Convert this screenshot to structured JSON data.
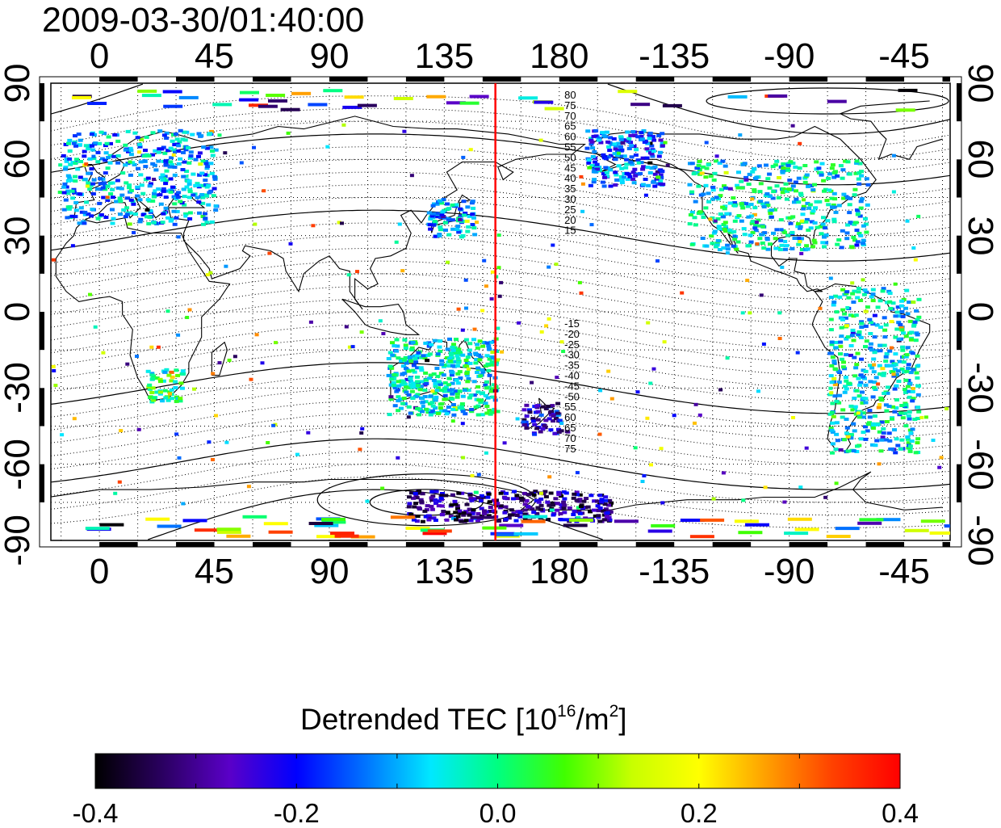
{
  "title": {
    "timestamp": "2009-03-30/01:40:00"
  },
  "map": {
    "projection": "equirectangular",
    "central_longitude": 7,
    "lon_axis": {
      "top_ticks": [
        "0",
        "45",
        "90",
        "135",
        "180",
        "-135",
        "-90",
        "-45"
      ],
      "bottom_ticks": [
        "0",
        "45",
        "90",
        "135",
        "180",
        "-135",
        "-90",
        "-45"
      ],
      "tick_lon_values": [
        0,
        45,
        90,
        135,
        180,
        225,
        270,
        315
      ],
      "range_lon": [
        -19,
        333
      ]
    },
    "lat_axis": {
      "left_ticks": [
        "90",
        "60",
        "30",
        "0",
        "-30",
        "-60",
        "-90"
      ],
      "right_ticks": [
        "90",
        "60",
        "30",
        "0",
        "-30",
        "-60",
        "-90"
      ],
      "tick_lat_values": [
        90,
        60,
        30,
        0,
        -30,
        -60,
        -90
      ]
    },
    "grid": "dotted, every 15 degrees",
    "marker_line": {
      "longitude": 155,
      "color": "#ff0000"
    },
    "contour_labels_north": [
      "80",
      "75",
      "70",
      "65",
      "60",
      "55",
      "50",
      "45",
      "40",
      "35",
      "30",
      "25",
      "20",
      "15"
    ],
    "contour_labels_south": [
      "-15",
      "-20",
      "-25",
      "-30",
      "-35",
      "-40",
      "-45",
      "-50",
      "55",
      "60",
      "65",
      "70",
      "75"
    ],
    "data_regions": [
      {
        "region": "Europe",
        "lat": [
          35,
          72
        ],
        "lon": [
          -15,
          45
        ],
        "mean": -0.1
      },
      {
        "region": "Alaska",
        "lat": [
          50,
          72
        ],
        "lon": [
          190,
          220
        ],
        "mean": -0.15
      },
      {
        "region": "North America",
        "lat": [
          25,
          60
        ],
        "lon": [
          230,
          300
        ],
        "mean": -0.05
      },
      {
        "region": "Japan",
        "lat": [
          30,
          45
        ],
        "lon": [
          128,
          146
        ],
        "mean": -0.1
      },
      {
        "region": "New Zealand",
        "lat": [
          -48,
          -35
        ],
        "lon": [
          165,
          180
        ],
        "mean": -0.25
      },
      {
        "region": "Antarctica",
        "lat": [
          -82,
          -70
        ],
        "lon": [
          120,
          200
        ],
        "mean": -0.3
      },
      {
        "region": "South Africa",
        "lat": [
          -35,
          -22
        ],
        "lon": [
          18,
          32
        ],
        "mean": 0.0
      },
      {
        "region": "Australia",
        "lat": [
          -40,
          -10
        ],
        "lon": [
          112,
          155
        ],
        "mean": -0.05
      },
      {
        "region": "South America",
        "lat": [
          -55,
          10
        ],
        "lon": [
          285,
          320
        ],
        "mean": -0.05
      }
    ]
  },
  "colorbar": {
    "title_main": "Detrended TEC  [10",
    "title_exp": "16",
    "title_unit": "/m",
    "title_exp2": "2",
    "title_close": "]",
    "ticks": [
      "-0.4",
      "-0.2",
      "0.0",
      "0.2",
      "0.4"
    ],
    "range": [
      -0.4,
      0.4
    ],
    "colors": [
      "#000000",
      "#2a0060",
      "#5a00c8",
      "#0000ff",
      "#0070ff",
      "#00e8ff",
      "#00ff80",
      "#40ff00",
      "#c8ff00",
      "#ffff00",
      "#ffa000",
      "#ff4000",
      "#ff0000"
    ]
  }
}
